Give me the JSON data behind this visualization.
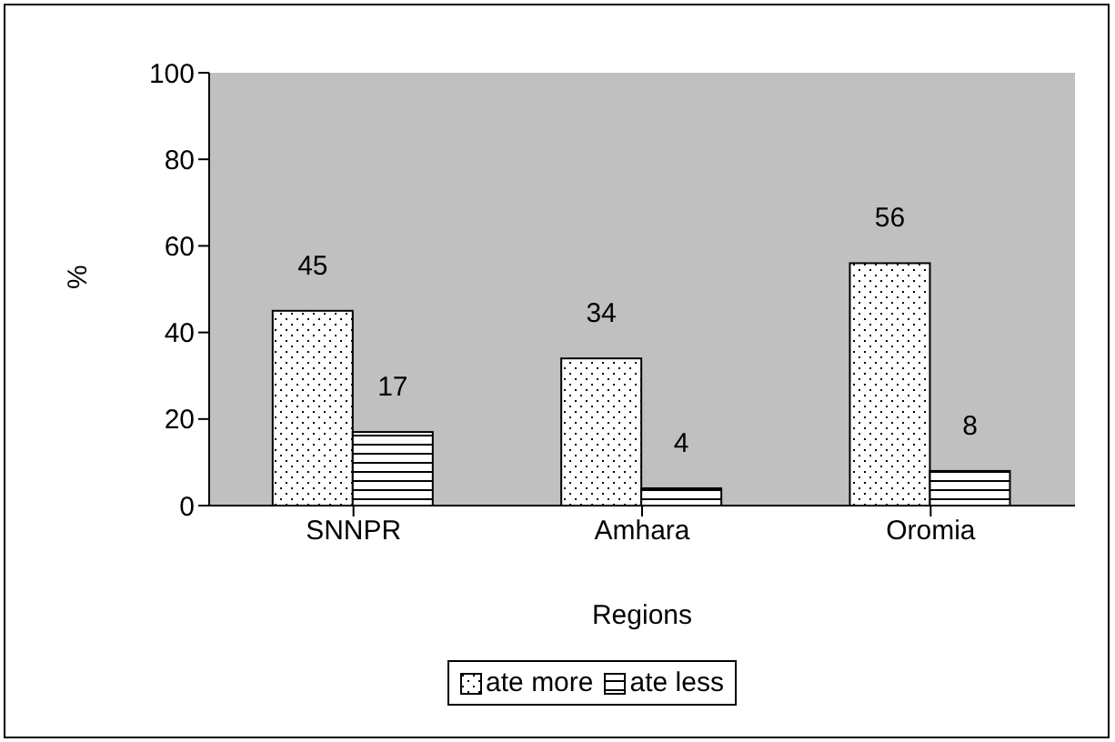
{
  "chart_data": {
    "type": "bar",
    "xlabel": "Regions",
    "ylabel": "%",
    "categories": [
      "SNNPR",
      "Amhara",
      "Oromia"
    ],
    "series": [
      {
        "name": "ate more",
        "color": "#ffffff",
        "values": [
          45,
          34,
          56
        ]
      },
      {
        "name": "ate less",
        "color": "#ffffff",
        "values": [
          17,
          4,
          8
        ]
      }
    ],
    "ylim": [
      0,
      100
    ],
    "yticks": [
      0,
      20,
      40,
      60,
      80,
      100
    ],
    "legend": "bottom",
    "data_labels": true
  }
}
